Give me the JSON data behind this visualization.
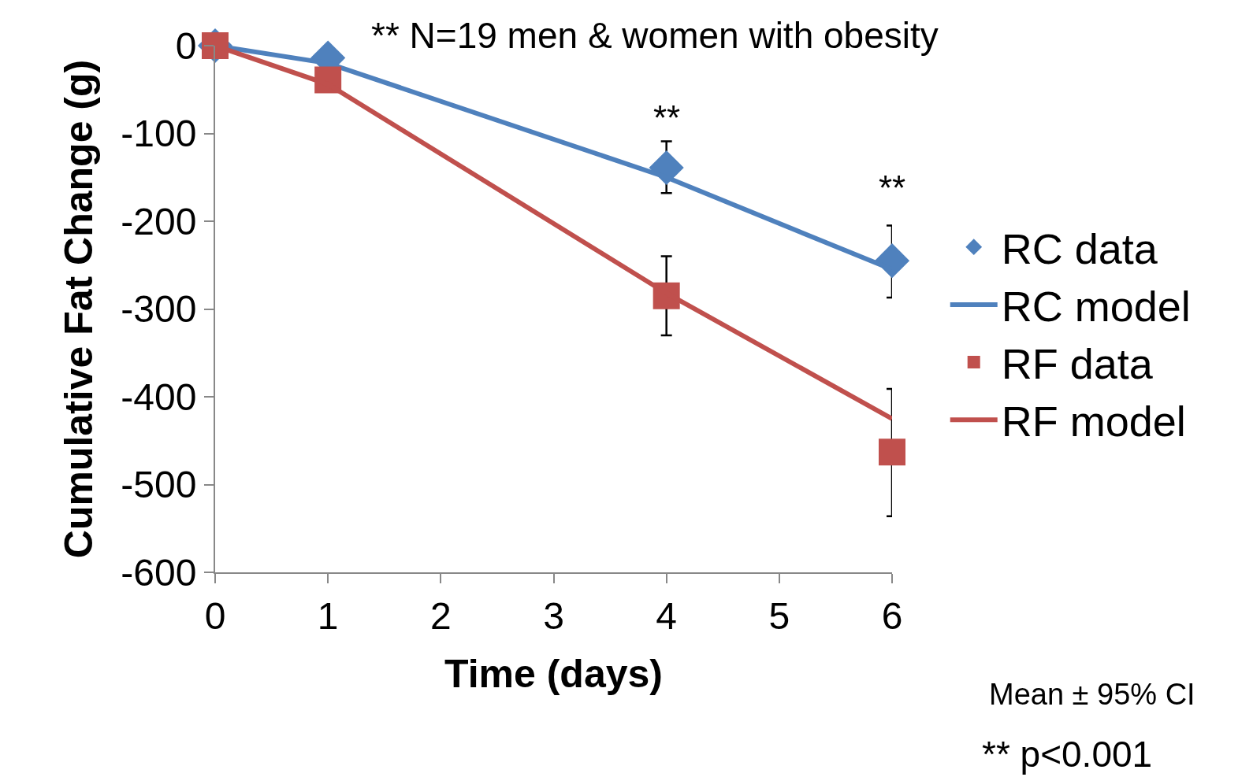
{
  "chart_data": {
    "type": "line",
    "xlabel": "Time (days)",
    "ylabel": "Cumulative Fat Change (g)",
    "xlim": [
      0,
      6
    ],
    "xticks": [
      0,
      1,
      2,
      3,
      4,
      5,
      6
    ],
    "ylim": [
      -600,
      0
    ],
    "yticks": [
      0,
      -100,
      -200,
      -300,
      -400,
      -500,
      -600
    ],
    "grid": false,
    "legend": "right",
    "series": [
      {
        "name": "RC data",
        "type": "scatter",
        "marker": "diamond",
        "color": "#4f81bd",
        "x": [
          0,
          1,
          4,
          6
        ],
        "values": [
          0,
          -14,
          -139,
          -245
        ],
        "errors": [
          null,
          null,
          [
            -168,
            -109
          ],
          [
            -287,
            -205
          ]
        ]
      },
      {
        "name": "RC model",
        "marker": "none",
        "color": "#4f81bd",
        "x": [
          0,
          1,
          4,
          6
        ],
        "values": [
          0,
          -20,
          -150,
          -255
        ]
      },
      {
        "name": "RF data",
        "type": "scatter",
        "marker": "square",
        "color": "#c0504d",
        "x": [
          0,
          1,
          4,
          6
        ],
        "values": [
          0,
          -39,
          -285,
          -463
        ],
        "errors": [
          null,
          null,
          [
            -330,
            -240
          ],
          [
            -536,
            -391
          ]
        ]
      },
      {
        "name": "RF model",
        "marker": "none",
        "color": "#c0504d",
        "x": [
          0,
          1,
          4,
          6
        ],
        "values": [
          0,
          -44,
          -282,
          -425
        ]
      }
    ],
    "annotations": [
      "** N=19 men & women with obesity",
      "**",
      "**",
      "Mean ± 95% CI",
      "** p<0.001"
    ]
  }
}
